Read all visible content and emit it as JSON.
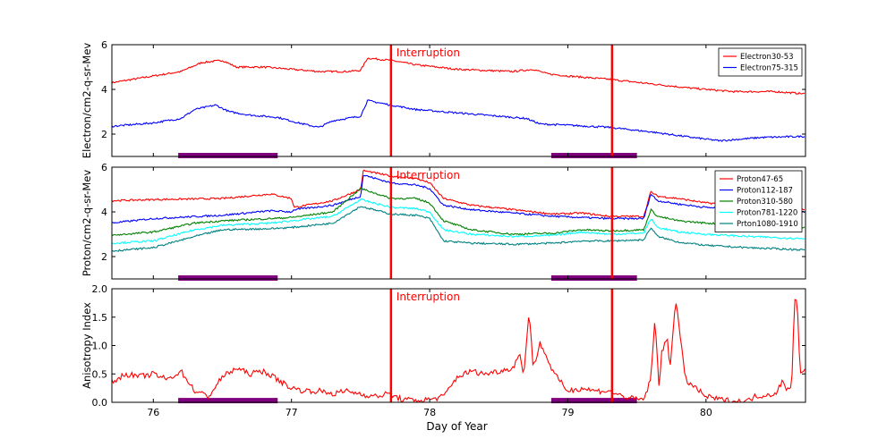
{
  "chart_data": {
    "type": "line",
    "x_range": [
      75.7,
      80.72
    ],
    "x_ticks": [
      76,
      77,
      78,
      79,
      80
    ],
    "x_tick_labels": [
      "76",
      "77",
      "78",
      "79",
      "80"
    ],
    "xlabel": "Day of Year",
    "interruption_label": "Interruption",
    "interruption_days": [
      77.72,
      79.32
    ],
    "shaded_intervals": [
      [
        76.18,
        76.9
      ],
      [
        78.88,
        79.5
      ]
    ],
    "shade_color": "#800080",
    "interruption_color": "#ff0000",
    "panels": [
      {
        "id": "electron",
        "ylabel": "Electron/cm2-q-sr-Mev",
        "ylim": [
          1,
          6
        ],
        "y_ticks": [
          2,
          4,
          6
        ],
        "y_tick_labels": [
          "2",
          "4",
          "6"
        ],
        "shade_level": 1.04,
        "series": [
          {
            "name": "Electron30-53",
            "color": "#ff0000",
            "x": [
              75.7,
              76.0,
              76.2,
              76.35,
              76.5,
              76.6,
              76.8,
              77.0,
              77.2,
              77.4,
              77.5,
              77.55,
              77.72,
              77.9,
              78.2,
              78.6,
              78.75,
              78.85,
              79.0,
              79.3,
              79.6,
              79.9,
              80.2,
              80.5,
              80.72
            ],
            "y": [
              4.3,
              4.6,
              4.8,
              5.2,
              5.3,
              5.0,
              5.0,
              4.9,
              4.8,
              4.8,
              4.85,
              5.4,
              5.3,
              5.1,
              4.9,
              4.8,
              4.9,
              4.7,
              4.6,
              4.45,
              4.25,
              4.05,
              3.9,
              3.9,
              3.8
            ]
          },
          {
            "name": "Electron75-315",
            "color": "#0000ff",
            "x": [
              75.7,
              76.0,
              76.2,
              76.3,
              76.45,
              76.55,
              76.7,
              76.9,
              77.05,
              77.2,
              77.3,
              77.4,
              77.5,
              77.55,
              77.72,
              77.9,
              78.2,
              78.5,
              78.7,
              78.8,
              79.0,
              79.3,
              79.6,
              79.9,
              80.1,
              80.4,
              80.72
            ],
            "y": [
              2.35,
              2.5,
              2.7,
              3.1,
              3.3,
              3.0,
              2.85,
              2.75,
              2.5,
              2.3,
              2.6,
              2.7,
              2.8,
              3.5,
              3.3,
              3.1,
              2.95,
              2.8,
              2.7,
              2.45,
              2.4,
              2.3,
              2.1,
              1.85,
              1.7,
              1.85,
              1.9
            ]
          }
        ]
      },
      {
        "id": "proton",
        "ylabel": "Proton/cm2-q-sr-Mev",
        "ylim": [
          1,
          6
        ],
        "y_ticks": [
          2,
          4,
          6
        ],
        "y_tick_labels": [
          "2",
          "4",
          "6"
        ],
        "shade_level": 1.04,
        "series": [
          {
            "name": "Proton47-65",
            "color": "#ff0000",
            "x": [
              75.7,
              76.0,
              76.5,
              76.85,
              77.0,
              77.02,
              77.3,
              77.5,
              77.52,
              77.72,
              77.9,
              78.0,
              78.1,
              78.3,
              78.6,
              78.9,
              79.1,
              79.3,
              79.55,
              79.6,
              79.65,
              79.8,
              80.0,
              80.3,
              80.72
            ],
            "y": [
              4.5,
              4.55,
              4.6,
              4.8,
              4.6,
              4.2,
              4.5,
              5.0,
              5.85,
              5.6,
              5.5,
              5.3,
              4.6,
              4.3,
              4.1,
              3.9,
              3.95,
              3.8,
              3.8,
              4.9,
              4.7,
              4.6,
              4.4,
              4.3,
              4.1
            ]
          },
          {
            "name": "Proton112-187",
            "color": "#0000ff",
            "x": [
              75.7,
              76.0,
              76.5,
              76.85,
              77.0,
              77.02,
              77.3,
              77.5,
              77.52,
              77.72,
              77.9,
              78.0,
              78.1,
              78.3,
              78.6,
              78.9,
              79.1,
              79.3,
              79.55,
              79.6,
              79.65,
              79.8,
              80.0,
              80.3,
              80.72
            ],
            "y": [
              3.5,
              3.7,
              3.85,
              4.05,
              4.0,
              4.1,
              4.3,
              4.7,
              5.65,
              5.3,
              5.2,
              5.05,
              4.3,
              4.1,
              3.95,
              3.8,
              3.75,
              3.7,
              3.7,
              4.8,
              4.5,
              4.35,
              4.2,
              4.1,
              4.0
            ]
          },
          {
            "name": "Proton310-580",
            "color": "#008000",
            "x": [
              75.7,
              76.0,
              76.3,
              76.5,
              76.85,
              77.0,
              77.3,
              77.5,
              77.72,
              77.9,
              78.0,
              78.1,
              78.3,
              78.6,
              78.9,
              79.1,
              79.3,
              79.55,
              79.6,
              79.65,
              79.8,
              80.0,
              80.3,
              80.72
            ],
            "y": [
              2.95,
              3.1,
              3.5,
              3.6,
              3.7,
              3.75,
              4.0,
              5.05,
              4.6,
              4.6,
              4.4,
              3.6,
              3.2,
              3.0,
              3.05,
              3.2,
              3.15,
              3.2,
              4.1,
              3.8,
              3.6,
              3.5,
              3.4,
              3.3
            ]
          },
          {
            "name": "Proton781-1220",
            "color": "#00ffff",
            "x": [
              75.7,
              76.0,
              76.3,
              76.5,
              76.85,
              77.0,
              77.3,
              77.5,
              77.72,
              77.9,
              78.0,
              78.1,
              78.3,
              78.6,
              78.9,
              79.1,
              79.3,
              79.55,
              79.6,
              79.65,
              79.8,
              80.0,
              80.3,
              80.72
            ],
            "y": [
              2.6,
              2.7,
              3.2,
              3.4,
              3.5,
              3.6,
              3.8,
              4.55,
              4.2,
              4.15,
              4.0,
              3.2,
              3.0,
              2.9,
              2.95,
              3.1,
              3.0,
              3.05,
              3.7,
              3.3,
              3.1,
              3.0,
              2.9,
              2.8
            ]
          },
          {
            "name": "Prton1080-1910",
            "color": "#008080",
            "x": [
              75.7,
              76.0,
              76.3,
              76.5,
              76.85,
              77.0,
              77.3,
              77.5,
              77.72,
              77.9,
              78.0,
              78.1,
              78.3,
              78.6,
              78.9,
              79.1,
              79.3,
              79.55,
              79.6,
              79.65,
              79.8,
              80.0,
              80.3,
              80.72
            ],
            "y": [
              2.25,
              2.4,
              2.9,
              3.2,
              3.25,
              3.3,
              3.5,
              4.25,
              3.9,
              3.85,
              3.7,
              2.7,
              2.6,
              2.55,
              2.6,
              2.7,
              2.7,
              2.75,
              3.3,
              2.9,
              2.65,
              2.5,
              2.4,
              2.3
            ]
          }
        ]
      },
      {
        "id": "anisotropy",
        "ylabel": "Anisotropy Index",
        "ylim": [
          0.0,
          2.0
        ],
        "y_ticks": [
          0.0,
          0.5,
          1.0,
          1.5,
          2.0
        ],
        "y_tick_labels": [
          "0.0",
          "0.5",
          "1.0",
          "1.5",
          "2.0"
        ],
        "shade_level": 0.03,
        "series": [
          {
            "name": "Anisotropy Index",
            "color": "#ff0000",
            "x": [
              75.7,
              75.8,
              75.9,
              76.0,
              76.1,
              76.2,
              76.3,
              76.4,
              76.5,
              76.6,
              76.7,
              76.8,
              76.9,
              77.0,
              77.1,
              77.2,
              77.3,
              77.4,
              77.5,
              77.6,
              77.7,
              77.8,
              77.9,
              78.0,
              78.1,
              78.2,
              78.3,
              78.4,
              78.5,
              78.6,
              78.65,
              78.68,
              78.72,
              78.75,
              78.8,
              78.9,
              79.0,
              79.1,
              79.2,
              79.3,
              79.4,
              79.5,
              79.55,
              79.6,
              79.63,
              79.66,
              79.68,
              79.72,
              79.74,
              79.78,
              79.85,
              79.9,
              80.0,
              80.1,
              80.2,
              80.3,
              80.35,
              80.4,
              80.5,
              80.55,
              80.6,
              80.62,
              80.64,
              80.66,
              80.68,
              80.72
            ],
            "y": [
              0.35,
              0.5,
              0.45,
              0.5,
              0.4,
              0.55,
              0.2,
              0.1,
              0.45,
              0.6,
              0.5,
              0.55,
              0.4,
              0.25,
              0.2,
              0.2,
              0.15,
              0.2,
              0.15,
              0.1,
              0.15,
              0.05,
              0.03,
              0.05,
              0.1,
              0.45,
              0.55,
              0.5,
              0.55,
              0.6,
              0.85,
              0.5,
              1.6,
              0.6,
              1.05,
              0.5,
              0.2,
              0.25,
              0.2,
              0.2,
              0.1,
              0.05,
              0.05,
              0.4,
              1.45,
              0.3,
              0.9,
              1.1,
              0.6,
              1.85,
              0.4,
              0.3,
              0.1,
              0.05,
              0.02,
              0.02,
              0.1,
              0.12,
              0.15,
              0.35,
              0.2,
              0.3,
              1.8,
              1.85,
              0.5,
              0.55
            ]
          }
        ]
      }
    ]
  }
}
